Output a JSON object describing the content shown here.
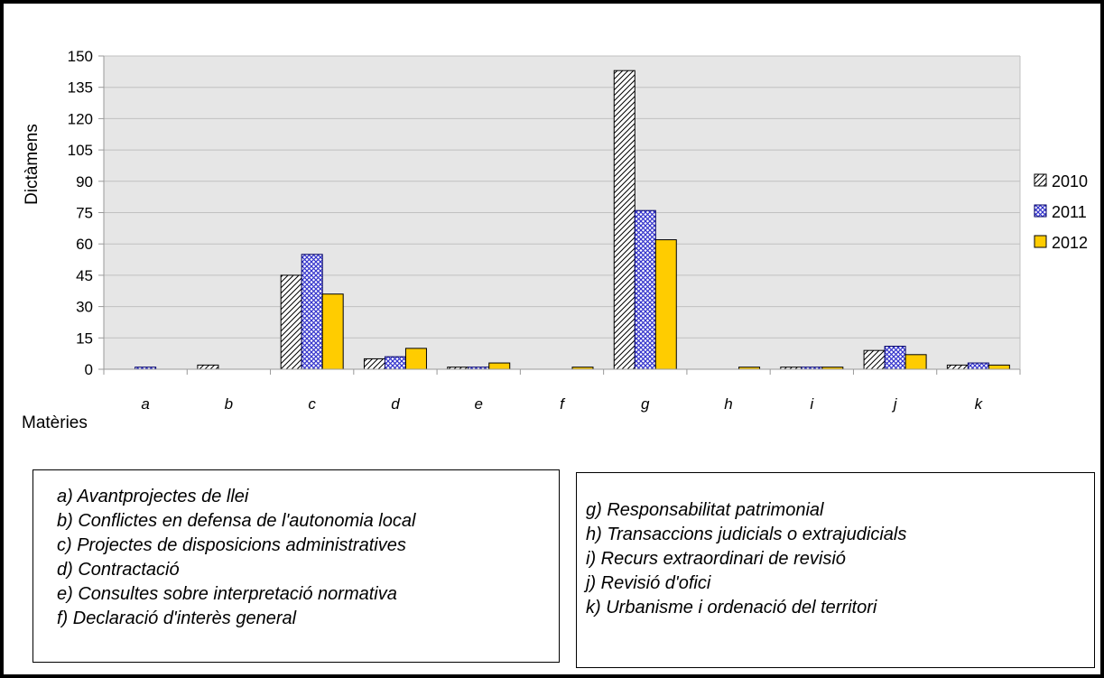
{
  "chart_data": {
    "type": "bar",
    "title": "",
    "xlabel": "Matèries",
    "ylabel": "Dictàmens",
    "ylim": [
      0,
      150
    ],
    "yticks": [
      0,
      15,
      30,
      45,
      60,
      75,
      90,
      105,
      120,
      135,
      150
    ],
    "grid": true,
    "legend_position": "right",
    "categories": [
      "a",
      "b",
      "c",
      "d",
      "e",
      "f",
      "g",
      "h",
      "i",
      "j",
      "k"
    ],
    "series": [
      {
        "name": "2010",
        "color": "#ffffff",
        "pattern": "diagonal-hatch",
        "values": [
          0,
          2,
          45,
          5,
          1,
          0,
          143,
          0,
          1,
          9,
          2
        ]
      },
      {
        "name": "2011",
        "color": "#3333cc",
        "pattern": "cross-hatch",
        "values": [
          1,
          0,
          55,
          6,
          1,
          0,
          76,
          0,
          1,
          11,
          3
        ]
      },
      {
        "name": "2012",
        "color": "#ffcc00",
        "pattern": "solid",
        "values": [
          0,
          0,
          36,
          10,
          3,
          1,
          62,
          1,
          1,
          7,
          2
        ]
      }
    ]
  },
  "notes_left": [
    "a) Avantprojectes de llei",
    "b) Conflictes en defensa de l'autonomia local",
    "c) Projectes de disposicions administratives",
    "d) Contractació",
    "e) Consultes sobre interpretació normativa",
    "f) Declaració d'interès general"
  ],
  "notes_right": [
    "g) Responsabilitat patrimonial",
    "h) Transaccions judicials o extrajudicials",
    "i) Recurs extraordinari de revisió",
    "j) Revisió d'ofici",
    "k) Urbanisme i ordenació del territori"
  ]
}
